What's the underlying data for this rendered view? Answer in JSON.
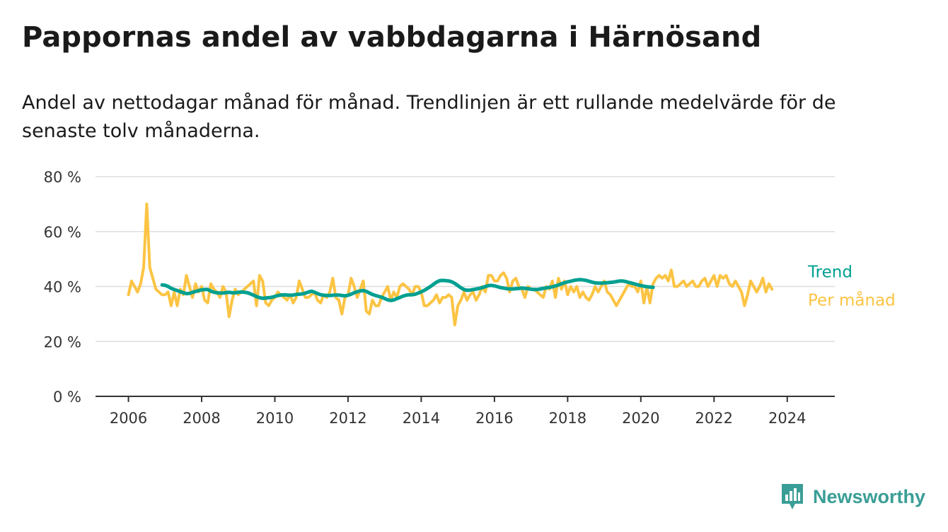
{
  "title": "Pappornas andel av vabbdagarna i Härnösand",
  "subtitle": "Andel av nettodagar månad för månad. Trendlinjen är ett rullande medelvärde för de senaste tolv månaderna.",
  "brand": {
    "name": "Newsworthy",
    "color": "#3a9e96",
    "icon": "bar-chart-speech-bubble-icon"
  },
  "colors": {
    "trend": "#00a091",
    "monthly": "#fcc444",
    "grid": "#dddddd",
    "axis": "#333333"
  },
  "chart_data": {
    "type": "line",
    "title": "Pappornas andel av vabbdagarna i Härnösand",
    "xlabel": "",
    "ylabel": "",
    "x_ticks": [
      2006,
      2008,
      2010,
      2012,
      2014,
      2016,
      2018,
      2020,
      2022,
      2024
    ],
    "x_tick_labels": [
      "2006",
      "2008",
      "2010",
      "2012",
      "2014",
      "2016",
      "2018",
      "2020",
      "2022",
      "2024"
    ],
    "y_ticks": [
      0,
      20,
      40,
      60,
      80
    ],
    "y_tick_labels": [
      "0 %",
      "20 %",
      "40 %",
      "60 %",
      "80 %"
    ],
    "xlim": [
      2005.1,
      2025.3
    ],
    "ylim": [
      0,
      80
    ],
    "grid": true,
    "legend": "inline-right",
    "series": [
      {
        "name": "Per månad",
        "color": "#fcc444",
        "start": 2006.0,
        "step": 0.0833333,
        "values": [
          37,
          42,
          40,
          38,
          41,
          47,
          70,
          47,
          43,
          39,
          38,
          37,
          37,
          38,
          33,
          38,
          33,
          39,
          37,
          44,
          40,
          36,
          41,
          38,
          40,
          35,
          34,
          41,
          39,
          38,
          36,
          40,
          38,
          29,
          35,
          39,
          37,
          38,
          39,
          40,
          41,
          42,
          33,
          44,
          42,
          34,
          33,
          35,
          36,
          38,
          37,
          36,
          35,
          37,
          34,
          36,
          42,
          39,
          36,
          36,
          37,
          38,
          35,
          34,
          37,
          36,
          38,
          43,
          36,
          35,
          30,
          36,
          37,
          43,
          40,
          36,
          39,
          42,
          31,
          30,
          35,
          33,
          33,
          36,
          38,
          40,
          35,
          38,
          36,
          40,
          41,
          40,
          39,
          37,
          40,
          40,
          38,
          33,
          33,
          34,
          35,
          37,
          34,
          36,
          36,
          37,
          36,
          26,
          33,
          35,
          38,
          35,
          37,
          38,
          35,
          37,
          40,
          38,
          44,
          44,
          42,
          42,
          44,
          45,
          43,
          38,
          42,
          43,
          40,
          39,
          36,
          40,
          39,
          39,
          38,
          37,
          36,
          40,
          39,
          42,
          36,
          43,
          39,
          42,
          37,
          40,
          38,
          40,
          36,
          38,
          36,
          35,
          37,
          40,
          38,
          40,
          42,
          38,
          37,
          35,
          33,
          35,
          37,
          39,
          41,
          40,
          40,
          38,
          42,
          34,
          40,
          34,
          41,
          43,
          44,
          43,
          44,
          42,
          46,
          40,
          40,
          41,
          42,
          40,
          41,
          42,
          40,
          40,
          42,
          43,
          40,
          42,
          44,
          40,
          44,
          43,
          44,
          41,
          40,
          42,
          40,
          38,
          33,
          37,
          42,
          40,
          38,
          40,
          43,
          38,
          41,
          39
        ]
      },
      {
        "name": "Trend",
        "color": "#00a091",
        "start": 2006.92,
        "step": 0.0833333,
        "values": [
          40.6,
          40.4,
          40.0,
          39.3,
          38.9,
          38.5,
          38.1,
          37.7,
          37.4,
          37.5,
          37.9,
          38.2,
          38.5,
          38.8,
          38.9,
          38.9,
          38.3,
          37.9,
          37.7,
          37.6,
          37.6,
          37.8,
          37.9,
          37.7,
          37.7,
          37.9,
          38.0,
          37.9,
          37.7,
          37.3,
          36.8,
          36.3,
          35.9,
          35.7,
          35.8,
          35.9,
          36.1,
          36.4,
          36.7,
          36.9,
          37.0,
          36.9,
          36.8,
          36.9,
          37.1,
          37.2,
          37.3,
          37.6,
          38.0,
          38.3,
          37.9,
          37.4,
          37.0,
          36.8,
          36.7,
          36.7,
          36.8,
          36.9,
          36.9,
          36.7,
          36.6,
          36.8,
          37.2,
          37.7,
          38.1,
          38.4,
          38.5,
          38.2,
          37.6,
          37.1,
          36.7,
          36.4,
          36.1,
          35.6,
          35.1,
          34.9,
          35.1,
          35.6,
          36.0,
          36.5,
          36.8,
          37.0,
          37.0,
          37.2,
          37.6,
          38.1,
          38.6,
          39.3,
          40.0,
          40.8,
          41.6,
          42.1,
          42.2,
          42.1,
          42.0,
          41.7,
          41.1,
          40.3,
          39.5,
          38.9,
          38.6,
          38.7,
          38.9,
          39.1,
          39.3,
          39.6,
          40.0,
          40.3,
          40.4,
          40.2,
          39.9,
          39.6,
          39.4,
          39.2,
          39.1,
          39.1,
          39.2,
          39.3,
          39.4,
          39.3,
          39.2,
          39.0,
          38.9,
          38.9,
          39.1,
          39.3,
          39.5,
          39.7,
          39.9,
          40.2,
          40.6,
          41.0,
          41.4,
          41.7,
          41.9,
          42.2,
          42.4,
          42.5,
          42.4,
          42.2,
          41.9,
          41.6,
          41.3,
          41.2,
          41.2,
          41.3,
          41.4,
          41.5,
          41.6,
          41.8,
          42.0,
          42.0,
          41.8,
          41.5,
          41.2,
          40.9,
          40.6,
          40.3,
          40.1,
          39.9,
          39.8,
          39.7
        ]
      }
    ]
  }
}
